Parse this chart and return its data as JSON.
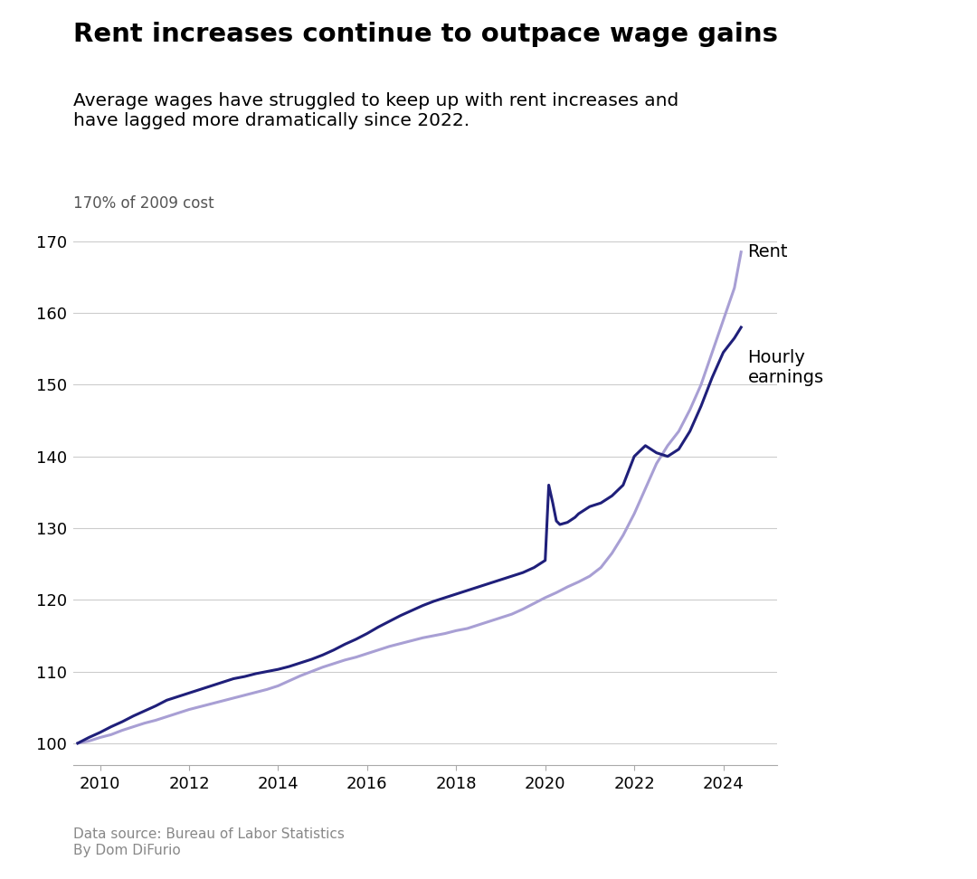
{
  "title": "Rent increases continue to outpace wage gains",
  "subtitle": "Average wages have struggled to keep up with rent increases and\nhave lagged more dramatically since 2022.",
  "ylabel": "170% of 2009 cost",
  "source": "Data source: Bureau of Labor Statistics\nBy Dom DiFurio",
  "rent_color": "#a89fd4",
  "wages_color": "#1f1f7a",
  "background_color": "#ffffff",
  "rent_label": "Rent",
  "wages_label": "Hourly\nearnings",
  "xlim": [
    2009.4,
    2025.2
  ],
  "ylim": [
    97,
    173
  ],
  "yticks": [
    100,
    110,
    120,
    130,
    140,
    150,
    160,
    170
  ],
  "xticks": [
    2010,
    2012,
    2014,
    2016,
    2018,
    2020,
    2022,
    2024
  ],
  "rent_data": {
    "years": [
      2009.5,
      2009.75,
      2010.0,
      2010.25,
      2010.5,
      2010.75,
      2011.0,
      2011.25,
      2011.5,
      2011.75,
      2012.0,
      2012.25,
      2012.5,
      2012.75,
      2013.0,
      2013.25,
      2013.5,
      2013.75,
      2014.0,
      2014.25,
      2014.5,
      2014.75,
      2015.0,
      2015.25,
      2015.5,
      2015.75,
      2016.0,
      2016.25,
      2016.5,
      2016.75,
      2017.0,
      2017.25,
      2017.5,
      2017.75,
      2018.0,
      2018.25,
      2018.5,
      2018.75,
      2019.0,
      2019.25,
      2019.5,
      2019.75,
      2020.0,
      2020.25,
      2020.5,
      2020.75,
      2021.0,
      2021.25,
      2021.5,
      2021.75,
      2022.0,
      2022.25,
      2022.5,
      2022.75,
      2023.0,
      2023.25,
      2023.5,
      2023.75,
      2024.0,
      2024.25,
      2024.4
    ],
    "values": [
      100.0,
      100.3,
      100.8,
      101.2,
      101.8,
      102.3,
      102.8,
      103.2,
      103.7,
      104.2,
      104.7,
      105.1,
      105.5,
      105.9,
      106.3,
      106.7,
      107.1,
      107.5,
      108.0,
      108.7,
      109.4,
      110.0,
      110.6,
      111.1,
      111.6,
      112.0,
      112.5,
      113.0,
      113.5,
      113.9,
      114.3,
      114.7,
      115.0,
      115.3,
      115.7,
      116.0,
      116.5,
      117.0,
      117.5,
      118.0,
      118.7,
      119.5,
      120.3,
      121.0,
      121.8,
      122.5,
      123.3,
      124.5,
      126.5,
      129.0,
      132.0,
      135.5,
      139.0,
      141.5,
      143.5,
      146.5,
      150.0,
      154.5,
      159.0,
      163.5,
      168.5
    ]
  },
  "wages_data": {
    "years": [
      2009.5,
      2009.75,
      2010.0,
      2010.25,
      2010.5,
      2010.75,
      2011.0,
      2011.25,
      2011.5,
      2011.75,
      2012.0,
      2012.25,
      2012.5,
      2012.75,
      2013.0,
      2013.25,
      2013.5,
      2013.75,
      2014.0,
      2014.25,
      2014.5,
      2014.75,
      2015.0,
      2015.25,
      2015.5,
      2015.75,
      2016.0,
      2016.25,
      2016.5,
      2016.75,
      2017.0,
      2017.25,
      2017.5,
      2017.75,
      2018.0,
      2018.25,
      2018.5,
      2018.75,
      2019.0,
      2019.25,
      2019.5,
      2019.75,
      2020.0,
      2020.08,
      2020.17,
      2020.25,
      2020.33,
      2020.5,
      2020.67,
      2020.75,
      2021.0,
      2021.25,
      2021.5,
      2021.75,
      2022.0,
      2022.25,
      2022.5,
      2022.75,
      2023.0,
      2023.25,
      2023.5,
      2023.75,
      2024.0,
      2024.25,
      2024.4
    ],
    "values": [
      100.0,
      100.8,
      101.5,
      102.3,
      103.0,
      103.8,
      104.5,
      105.2,
      106.0,
      106.5,
      107.0,
      107.5,
      108.0,
      108.5,
      109.0,
      109.3,
      109.7,
      110.0,
      110.3,
      110.7,
      111.2,
      111.7,
      112.3,
      113.0,
      113.8,
      114.5,
      115.3,
      116.2,
      117.0,
      117.8,
      118.5,
      119.2,
      119.8,
      120.3,
      120.8,
      121.3,
      121.8,
      122.3,
      122.8,
      123.3,
      123.8,
      124.5,
      125.5,
      136.0,
      133.5,
      131.0,
      130.5,
      130.8,
      131.5,
      132.0,
      133.0,
      133.5,
      134.5,
      136.0,
      140.0,
      141.5,
      140.5,
      140.0,
      141.0,
      143.5,
      147.0,
      151.0,
      154.5,
      156.5,
      158.0
    ]
  }
}
